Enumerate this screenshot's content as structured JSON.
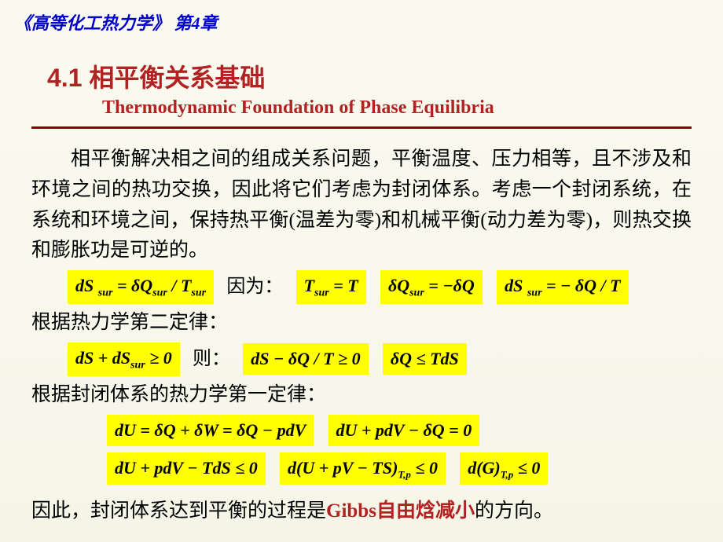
{
  "header": "《高等化工热力学》 第4章",
  "title": {
    "cn": "4.1  相平衡关系基础",
    "en": "Thermodynamic Foundation of Phase Equilibria"
  },
  "paragraph": "相平衡解决相之间的组成关系问题，平衡温度、压力相等，且不涉及和环境之间的热功交换，因此将它们考虑为封闭体系。考虑一个封闭系统，在系统和环境之间，保持热平衡(温差为零)和机械平衡(动力差为零)，则热交换和膨胀功是可逆的。",
  "labels": {
    "because": "因为：",
    "second_law": "根据热力学第二定律：",
    "then": "则：",
    "first_law": "根据封闭体系的热力学第一定律：",
    "conclusion_pre": "因此，封闭体系达到平衡的过程是",
    "gibbs": "Gibbs自由焓减小",
    "conclusion_post": "的方向。"
  },
  "equations": {
    "e1": "dS <span class='sub'>sur</span> = δQ<span class='sub'>sur</span> / T<span class='sub'>sur</span>",
    "e2": "T<span class='sub'>sur</span> = T",
    "e3": "δQ<span class='sub'>sur</span> = −δQ",
    "e4": "dS <span class='sub'>sur</span> = − δQ / T",
    "e5": "dS + dS<span class='sub'>sur</span> ≥ 0",
    "e6": "dS − δQ / T ≥ 0",
    "e7": "δQ ≤ TdS",
    "e8": "dU = δQ + δW = δQ − pdV",
    "e9": "dU + pdV − δQ = 0",
    "e10": "dU + pdV − TdS ≤ 0",
    "e11": "d(U + pV − TS)<span class='sub2'>T,p</span> ≤ 0",
    "e12": "d(G)<span class='sub2'>T,p</span> ≤ 0"
  },
  "colors": {
    "background": "#fafaf0",
    "header_text": "#0000cc",
    "title_text": "#b22222",
    "rule": "#8b0000",
    "highlight": "#ffff00",
    "body_text": "#000000"
  },
  "typography": {
    "header_fontsize": 22,
    "title_cn_fontsize": 32,
    "title_en_fontsize": 24,
    "body_fontsize": 25,
    "eq_fontsize": 22
  }
}
